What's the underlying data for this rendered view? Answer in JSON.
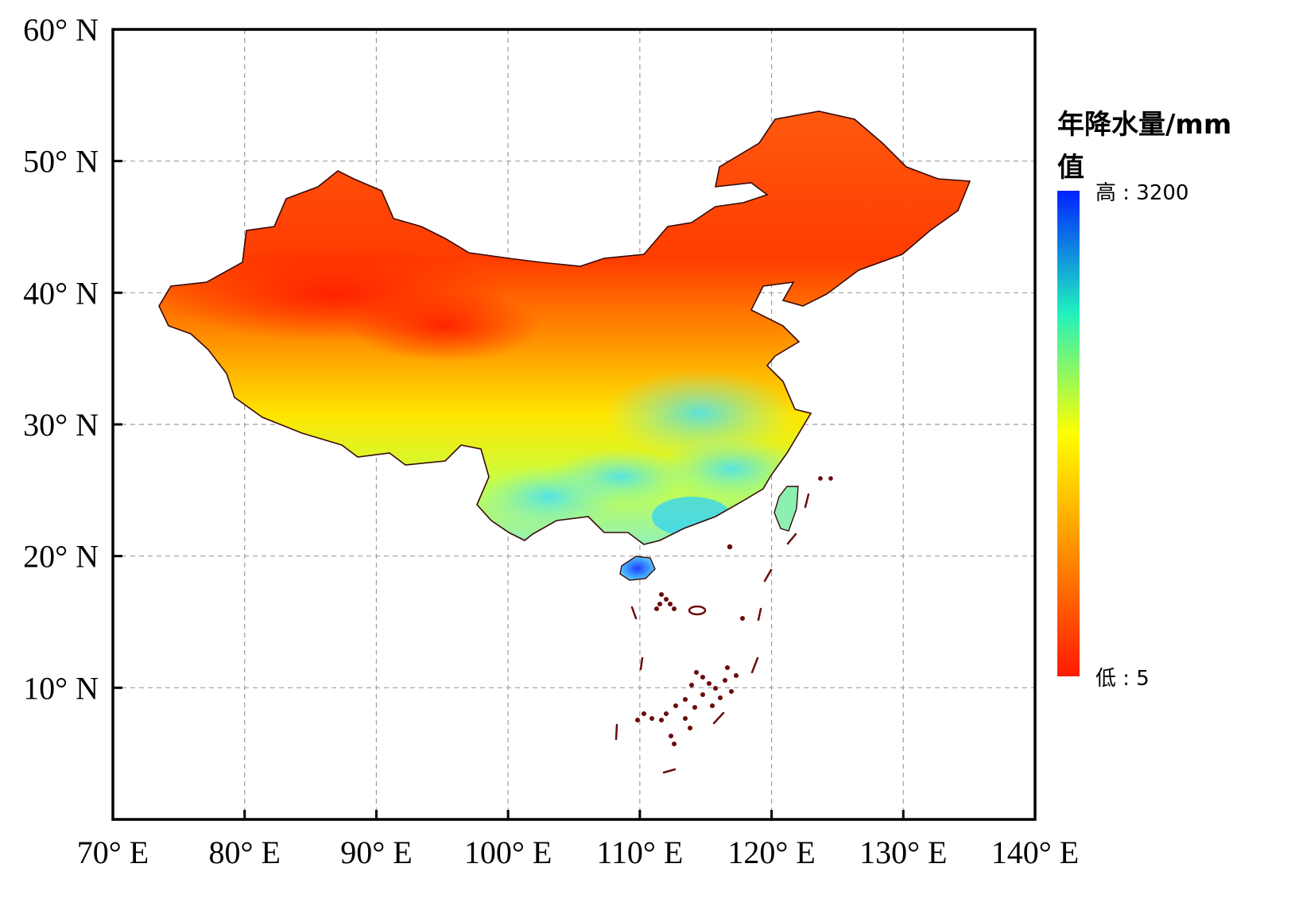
{
  "map": {
    "x_ticks": [
      {
        "value": 70,
        "label": "70° E"
      },
      {
        "value": 80,
        "label": "80° E"
      },
      {
        "value": 90,
        "label": "90° E"
      },
      {
        "value": 100,
        "label": "100° E"
      },
      {
        "value": 110,
        "label": "110° E"
      },
      {
        "value": 120,
        "label": "120° E"
      },
      {
        "value": 130,
        "label": "130° E"
      },
      {
        "value": 140,
        "label": "140° E"
      }
    ],
    "y_ticks": [
      {
        "value": 60,
        "label": "60° N"
      },
      {
        "value": 50,
        "label": "50° N"
      },
      {
        "value": 40,
        "label": "40° N"
      },
      {
        "value": 30,
        "label": "30° N"
      },
      {
        "value": 20,
        "label": "20° N"
      },
      {
        "value": 10,
        "label": "10° N"
      }
    ],
    "lon_range": [
      70,
      140
    ],
    "lat_range": [
      0,
      60
    ],
    "grid": true,
    "colors": {
      "low": "#ff1a00",
      "mid_low": "#ff8c00",
      "mid": "#ffff00",
      "mid_high": "#33ff99",
      "high": "#0022ff",
      "border": "#5a0a0a"
    }
  },
  "legend": {
    "title_line1": "年降水量/mm",
    "title_line2": "值",
    "high_label": "高 : 3200",
    "low_label": "低 : 5",
    "high_value": 3200,
    "low_value": 5
  }
}
